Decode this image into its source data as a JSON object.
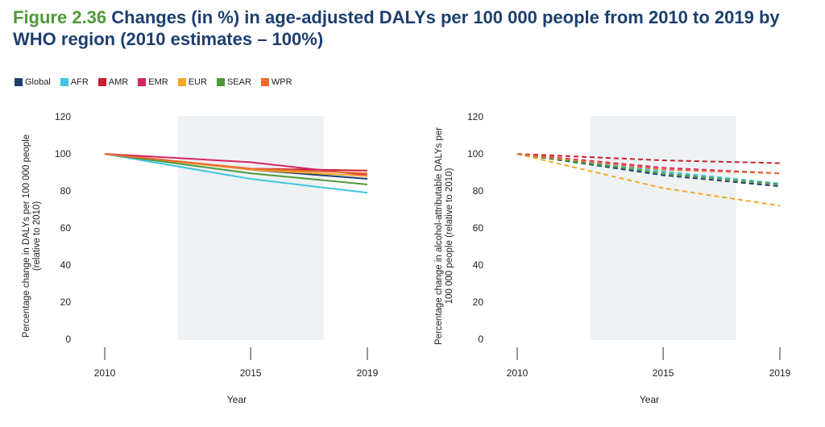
{
  "figure": {
    "label": "Figure 2.36",
    "title": "Changes (in %) in age-adjusted DALYs per 100 000 people from 2010 to 2019 by WHO region (2010 estimates – 100%)"
  },
  "legend": [
    {
      "name": "Global",
      "color": "#1d3f6e"
    },
    {
      "name": "AFR",
      "color": "#3ec5e0"
    },
    {
      "name": "AMR",
      "color": "#c8202f"
    },
    {
      "name": "EMR",
      "color": "#d62466"
    },
    {
      "name": "EUR",
      "color": "#f6a623"
    },
    {
      "name": "SEAR",
      "color": "#4e9a3a"
    },
    {
      "name": "WPR",
      "color": "#ee6a2c"
    }
  ],
  "chart_data": [
    {
      "type": "line",
      "line_style": "solid",
      "x": [
        2010,
        2015,
        2019
      ],
      "xlabel": "Year",
      "ylabel": [
        "Percentage change in DALYs per 100 000 people",
        "(relative to 2010)"
      ],
      "ylim": [
        0,
        120
      ],
      "yticks": [
        0,
        20,
        40,
        60,
        80,
        100,
        120
      ],
      "shaded_region": [
        2012.5,
        2017.5
      ],
      "series": [
        {
          "name": "Global",
          "values": [
            100,
            91.5,
            86.5
          ]
        },
        {
          "name": "AFR",
          "values": [
            100,
            86.5,
            79
          ]
        },
        {
          "name": "AMR",
          "values": [
            100,
            92,
            91
          ]
        },
        {
          "name": "EMR",
          "values": [
            100,
            95.5,
            88.5
          ]
        },
        {
          "name": "EUR",
          "values": [
            100,
            91.5,
            88
          ]
        },
        {
          "name": "SEAR",
          "values": [
            100,
            89.5,
            83.5
          ]
        },
        {
          "name": "WPR",
          "values": [
            100,
            92,
            89.5
          ]
        }
      ]
    },
    {
      "type": "line",
      "line_style": "dashed",
      "x": [
        2010,
        2015,
        2019
      ],
      "xlabel": "Year",
      "ylabel": [
        "Percentage change in alcohol-attributable DALYs per",
        "100 000 people (relative to 2010)"
      ],
      "ylim": [
        0,
        120
      ],
      "yticks": [
        0,
        20,
        40,
        60,
        80,
        100,
        120
      ],
      "shaded_region": [
        2012.5,
        2017.5
      ],
      "series": [
        {
          "name": "Global",
          "values": [
            100,
            88.5,
            82.5
          ]
        },
        {
          "name": "AFR",
          "values": [
            100,
            90.5,
            84
          ]
        },
        {
          "name": "AMR",
          "values": [
            100,
            96.5,
            95
          ]
        },
        {
          "name": "EMR",
          "values": [
            100,
            92.5,
            89.5
          ]
        },
        {
          "name": "EUR",
          "values": [
            100,
            81.5,
            72
          ]
        },
        {
          "name": "SEAR",
          "values": [
            100,
            89.5,
            83.5
          ]
        },
        {
          "name": "WPR",
          "values": [
            100,
            91.5,
            89.5
          ]
        }
      ]
    }
  ]
}
